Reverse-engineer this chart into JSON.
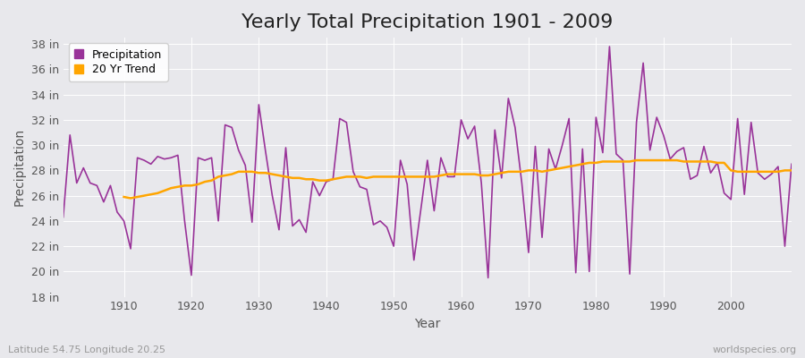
{
  "title": "Yearly Total Precipitation 1901 - 2009",
  "xlabel": "Year",
  "ylabel": "Precipitation",
  "background_color": "#e8e8ec",
  "plot_bg_color": "#e8e8ec",
  "precip_color": "#993399",
  "trend_color": "#FFA500",
  "precip_label": "Precipitation",
  "trend_label": "20 Yr Trend",
  "years": [
    1901,
    1902,
    1903,
    1904,
    1905,
    1906,
    1907,
    1908,
    1909,
    1910,
    1911,
    1912,
    1913,
    1914,
    1915,
    1916,
    1917,
    1918,
    1919,
    1920,
    1921,
    1922,
    1923,
    1924,
    1925,
    1926,
    1927,
    1928,
    1929,
    1930,
    1931,
    1932,
    1933,
    1934,
    1935,
    1936,
    1937,
    1938,
    1939,
    1940,
    1941,
    1942,
    1943,
    1944,
    1945,
    1946,
    1947,
    1948,
    1949,
    1950,
    1951,
    1952,
    1953,
    1954,
    1955,
    1956,
    1957,
    1958,
    1959,
    1960,
    1961,
    1962,
    1963,
    1964,
    1965,
    1966,
    1967,
    1968,
    1969,
    1970,
    1971,
    1972,
    1973,
    1974,
    1975,
    1976,
    1977,
    1978,
    1979,
    1980,
    1981,
    1982,
    1983,
    1984,
    1985,
    1986,
    1987,
    1988,
    1989,
    1990,
    1991,
    1992,
    1993,
    1994,
    1995,
    1996,
    1997,
    1998,
    1999,
    2000,
    2001,
    2002,
    2003,
    2004,
    2005,
    2006,
    2007,
    2008,
    2009
  ],
  "precip": [
    24.3,
    30.8,
    27.0,
    28.2,
    27.0,
    26.8,
    25.5,
    26.8,
    24.7,
    24.0,
    21.8,
    29.0,
    28.8,
    28.5,
    29.1,
    28.9,
    29.0,
    29.2,
    24.0,
    19.7,
    29.0,
    28.8,
    29.0,
    24.0,
    31.6,
    31.4,
    29.6,
    28.4,
    23.9,
    33.2,
    29.5,
    26.0,
    23.3,
    29.8,
    23.6,
    24.1,
    23.1,
    27.1,
    26.0,
    27.1,
    27.3,
    32.1,
    31.8,
    27.9,
    26.7,
    26.5,
    23.7,
    24.0,
    23.5,
    22.0,
    28.8,
    26.9,
    20.9,
    24.8,
    28.8,
    24.8,
    29.0,
    27.5,
    27.5,
    32.0,
    30.5,
    31.5,
    27.0,
    19.5,
    31.2,
    27.4,
    33.7,
    31.4,
    27.0,
    21.5,
    29.9,
    22.7,
    29.7,
    28.1,
    30.0,
    32.1,
    19.9,
    29.7,
    20.0,
    32.2,
    29.4,
    37.8,
    29.3,
    28.8,
    19.8,
    31.8,
    36.5,
    29.6,
    32.2,
    30.8,
    28.9,
    29.5,
    29.8,
    27.3,
    27.6,
    29.9,
    27.8,
    28.6,
    26.2,
    25.7,
    32.1,
    26.1,
    31.8,
    27.8,
    27.3,
    27.7,
    28.3,
    22.0,
    28.5
  ],
  "trend_years": [
    1910,
    1911,
    1912,
    1913,
    1914,
    1915,
    1916,
    1917,
    1918,
    1919,
    1920,
    1921,
    1922,
    1923,
    1924,
    1925,
    1926,
    1927,
    1928,
    1929,
    1930,
    1931,
    1932,
    1933,
    1934,
    1935,
    1936,
    1937,
    1938,
    1939,
    1940,
    1941,
    1942,
    1943,
    1944,
    1945,
    1946,
    1947,
    1948,
    1949,
    1950,
    1951,
    1952,
    1953,
    1954,
    1955,
    1956,
    1957,
    1958,
    1959,
    1960,
    1961,
    1962,
    1963,
    1964,
    1965,
    1966,
    1967,
    1968,
    1969,
    1970,
    1971,
    1972,
    1973,
    1974,
    1975,
    1976,
    1977,
    1978,
    1979,
    1980,
    1981,
    1982,
    1983,
    1984,
    1985,
    1986,
    1987,
    1988,
    1989,
    1990,
    1991,
    1992,
    1993,
    1994,
    1995,
    1996,
    1997,
    1998,
    1999,
    2000,
    2001,
    2002,
    2003,
    2004,
    2005,
    2006,
    2007,
    2008,
    2009
  ],
  "trend": [
    25.9,
    25.8,
    25.9,
    26.0,
    26.1,
    26.2,
    26.4,
    26.6,
    26.7,
    26.8,
    26.8,
    26.9,
    27.1,
    27.2,
    27.5,
    27.6,
    27.7,
    27.9,
    27.9,
    27.9,
    27.8,
    27.8,
    27.7,
    27.6,
    27.5,
    27.4,
    27.4,
    27.3,
    27.3,
    27.2,
    27.2,
    27.3,
    27.4,
    27.5,
    27.5,
    27.5,
    27.4,
    27.5,
    27.5,
    27.5,
    27.5,
    27.5,
    27.5,
    27.5,
    27.5,
    27.5,
    27.5,
    27.6,
    27.7,
    27.7,
    27.7,
    27.7,
    27.7,
    27.6,
    27.6,
    27.7,
    27.8,
    27.9,
    27.9,
    27.9,
    28.0,
    28.0,
    27.9,
    28.0,
    28.1,
    28.2,
    28.3,
    28.4,
    28.5,
    28.6,
    28.6,
    28.7,
    28.7,
    28.7,
    28.7,
    28.7,
    28.8,
    28.8,
    28.8,
    28.8,
    28.8,
    28.8,
    28.8,
    28.7,
    28.7,
    28.7,
    28.7,
    28.7,
    28.6,
    28.6,
    28.0,
    27.9,
    27.9,
    27.9,
    27.9,
    27.9,
    27.9,
    27.9,
    28.0,
    28.0
  ],
  "ylim": [
    18,
    38.5
  ],
  "yticks": [
    18,
    20,
    22,
    24,
    26,
    28,
    30,
    32,
    34,
    36,
    38
  ],
  "xlim": [
    1901,
    2009
  ],
  "xticks": [
    1910,
    1920,
    1930,
    1940,
    1950,
    1960,
    1970,
    1980,
    1990,
    2000
  ],
  "footer_left": "Latitude 54.75 Longitude 20.25",
  "footer_right": "worldspecies.org",
  "title_fontsize": 16,
  "axis_label_fontsize": 10,
  "tick_fontsize": 9,
  "footer_fontsize": 8
}
